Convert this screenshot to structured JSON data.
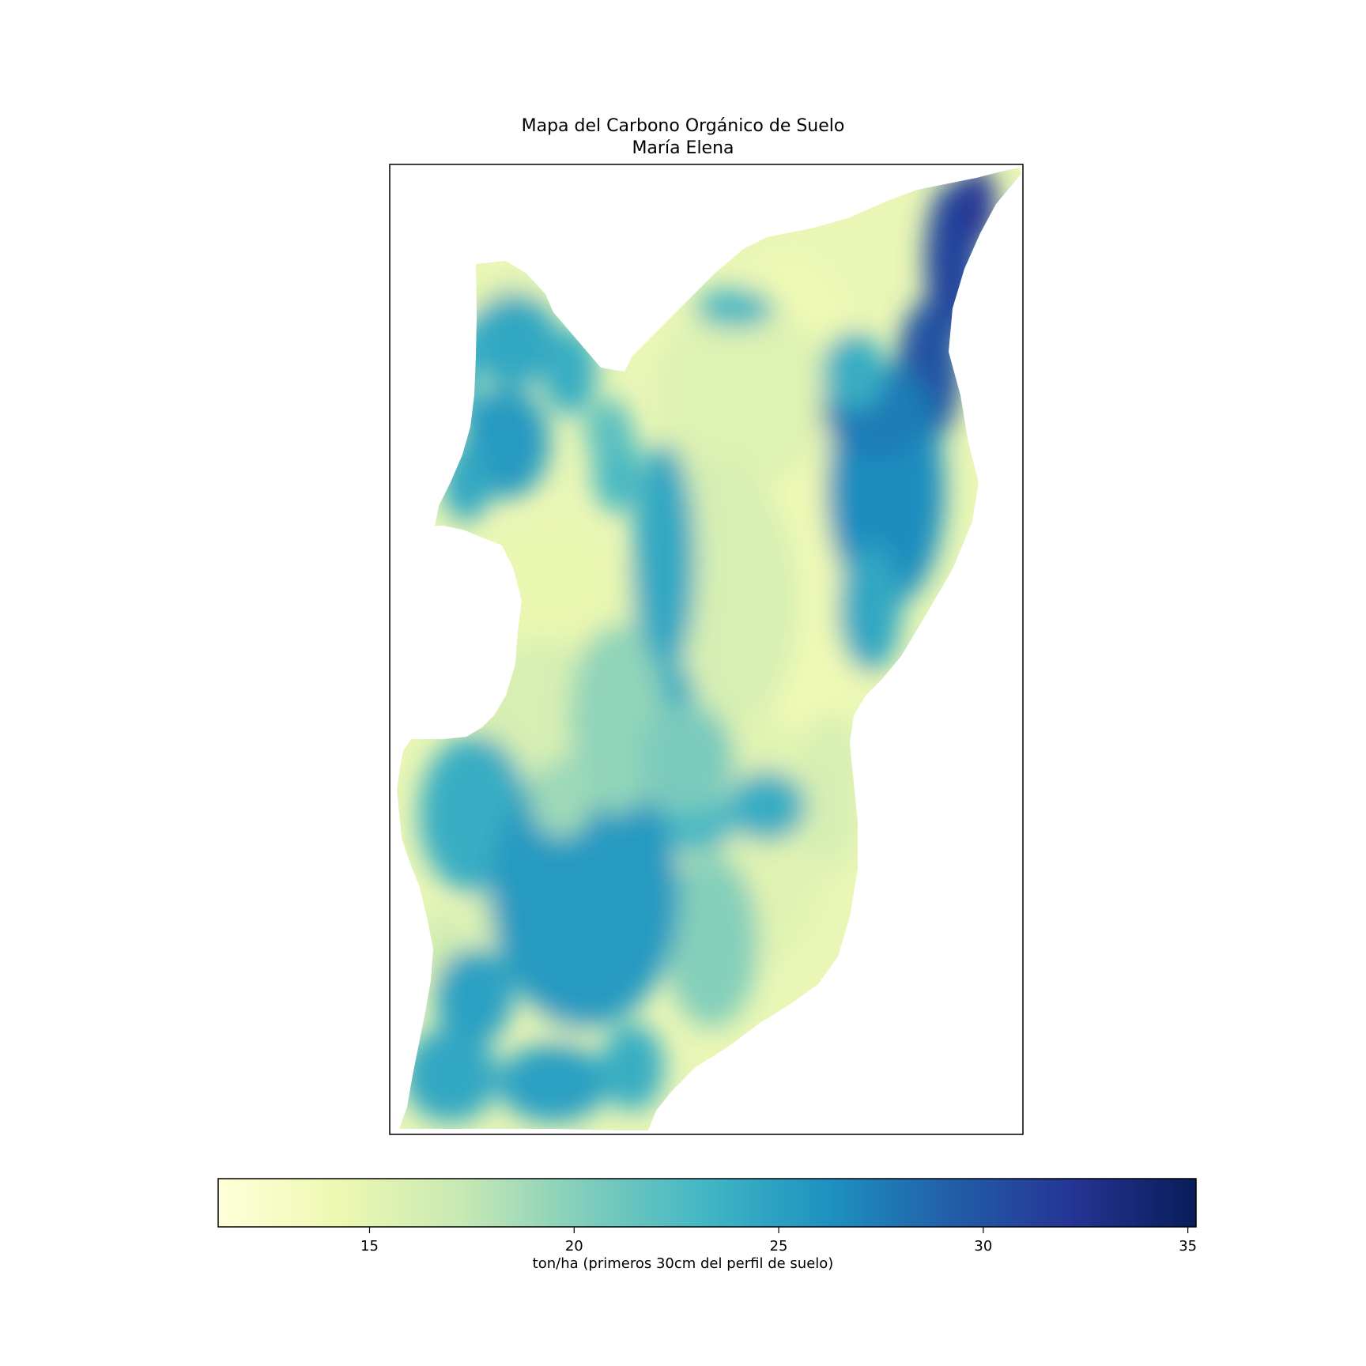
{
  "title": {
    "line1": "Mapa del Carbono Orgánico de Suelo",
    "line2": "María Elena"
  },
  "map": {
    "region": "María Elena",
    "variable": "Carbono Orgánico de Suelo",
    "colormap": "YlGnBu",
    "missing_color": "#ffffff"
  },
  "colorbar": {
    "label": "ton/ha (primeros 30cm del perfil de suelo)",
    "min": 11.3,
    "max": 35.2,
    "ticks": [
      15,
      20,
      25,
      30,
      35
    ],
    "tick_labels": [
      "15",
      "20",
      "25",
      "30",
      "35"
    ],
    "stops": [
      "#ffffd9",
      "#edf8b1",
      "#c7e9b4",
      "#7fcdbb",
      "#41b6c4",
      "#1d91c0",
      "#225ea8",
      "#253494",
      "#081d58"
    ]
  }
}
